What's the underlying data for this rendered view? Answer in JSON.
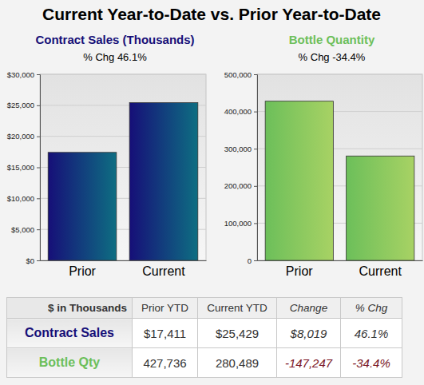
{
  "title": "Current Year-to-Date vs. Prior Year-to-Date",
  "chart_data": [
    {
      "type": "bar",
      "title": "Contract Sales (Thousands)",
      "subtitle": "% Chg 46.1%",
      "categories": [
        "Prior",
        "Current"
      ],
      "values": [
        17411,
        25429
      ],
      "color": "#160f78",
      "ylim": [
        0,
        30000
      ],
      "yticks": [
        {
          "value": 0,
          "label": "$0"
        },
        {
          "value": 5000,
          "label": "$5,000"
        },
        {
          "value": 10000,
          "label": "$10,000"
        },
        {
          "value": 15000,
          "label": "$15,000"
        },
        {
          "value": 20000,
          "label": "$20,000"
        },
        {
          "value": 25000,
          "label": "$25,000"
        },
        {
          "value": 30000,
          "label": "$30,000"
        }
      ],
      "grid": true
    },
    {
      "type": "bar",
      "title": "Bottle Quantity",
      "subtitle": "% Chg -34.4%",
      "categories": [
        "Prior",
        "Current"
      ],
      "values": [
        427736,
        280489
      ],
      "color": "#6cbf5a",
      "ylim": [
        0,
        500000
      ],
      "yticks": [
        0,
        {
          "value": 100000,
          "label": "100,000"
        },
        {
          "value": 200000,
          "label": "200,000"
        },
        {
          "value": 300000,
          "label": "300,000"
        },
        {
          "value": 400000,
          "label": "400,000"
        },
        {
          "value": 500000,
          "label": "500,000"
        }
      ],
      "grid": true
    }
  ],
  "table": {
    "header": [
      "$ in Thousands",
      "Prior YTD",
      "Current YTD",
      "Change",
      "% Chg"
    ],
    "rows": [
      [
        "Contract Sales",
        "$17,411",
        "$25,429",
        "$8,019",
        "46.1%"
      ],
      [
        "Bottle Qty",
        "427,736",
        "280,489",
        "-147,247",
        "-34.4%"
      ]
    ]
  }
}
